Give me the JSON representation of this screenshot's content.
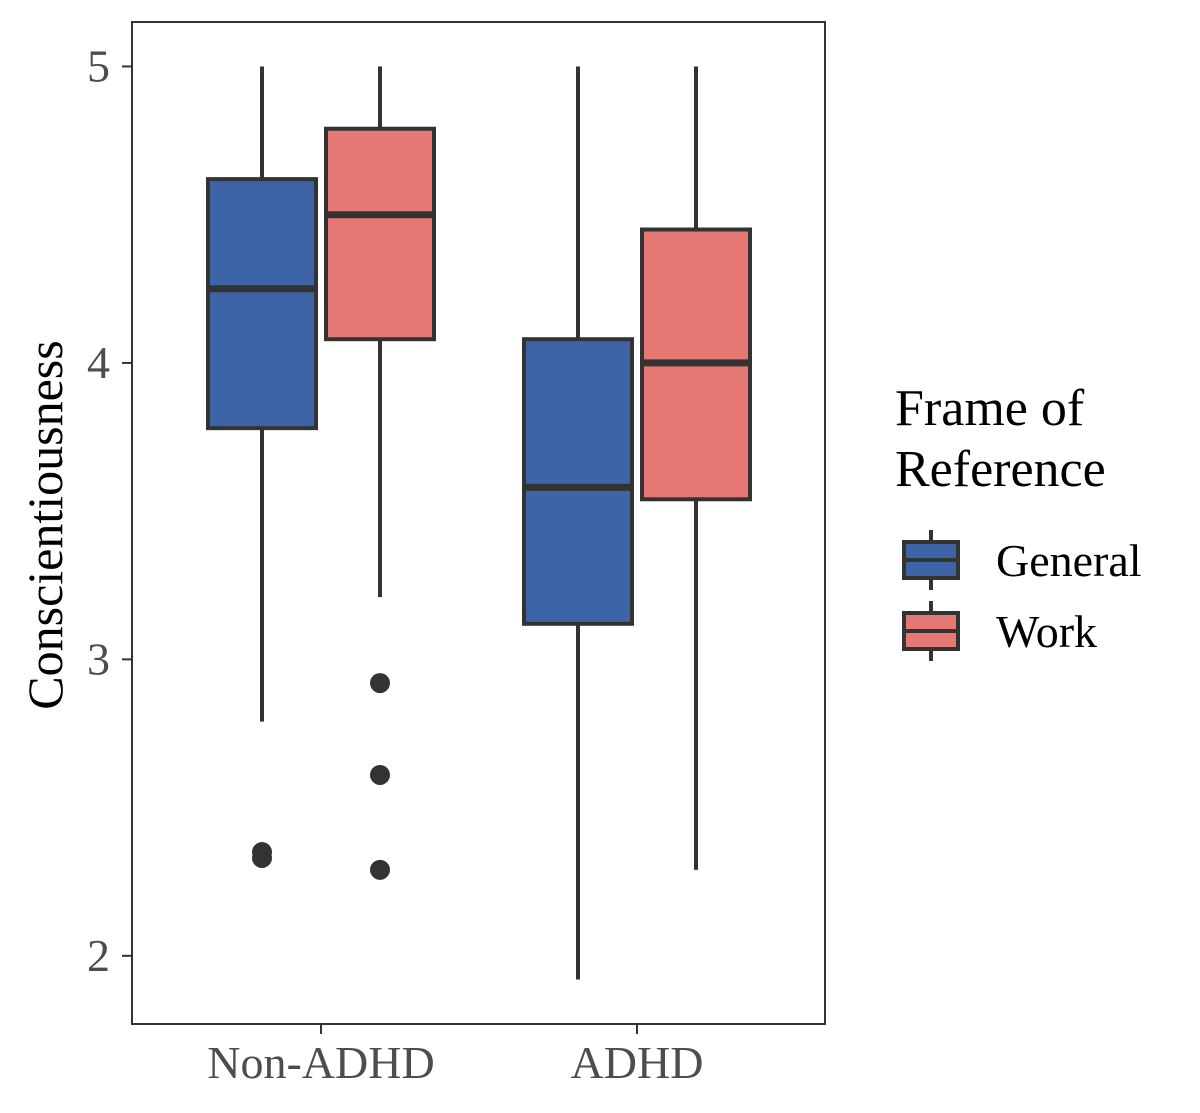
{
  "chart_data": {
    "type": "boxplot",
    "title": "",
    "xlabel": "",
    "ylabel": "Conscientiousness",
    "ylim": [
      1.77,
      5.15
    ],
    "yticks": [
      2,
      3,
      4,
      5
    ],
    "categories": [
      "Non-ADHD",
      "ADHD"
    ],
    "grid": false,
    "legend": {
      "title_lines": [
        "Frame of",
        "Reference"
      ],
      "placement": "right"
    },
    "series": [
      {
        "name": "General",
        "color": "#3C64A6",
        "boxes": [
          {
            "category": "Non-ADHD",
            "whisker_low": 2.79,
            "q1": 3.78,
            "median": 4.25,
            "q3": 4.62,
            "whisker_high": 5.0,
            "outliers": [
              2.33,
              2.35
            ]
          },
          {
            "category": "ADHD",
            "whisker_low": 1.92,
            "q1": 3.12,
            "median": 3.58,
            "q3": 4.08,
            "whisker_high": 5.0,
            "outliers": []
          }
        ]
      },
      {
        "name": "Work",
        "color": "#E67873",
        "boxes": [
          {
            "category": "Non-ADHD",
            "whisker_low": 3.21,
            "q1": 4.08,
            "median": 4.5,
            "q3": 4.79,
            "whisker_high": 5.0,
            "outliers": [
              2.92,
              2.61,
              2.29
            ]
          },
          {
            "category": "ADHD",
            "whisker_low": 2.29,
            "q1": 3.54,
            "median": 4.0,
            "q3": 4.45,
            "whisker_high": 5.0,
            "outliers": []
          }
        ]
      }
    ],
    "stroke_color": "#333333"
  }
}
